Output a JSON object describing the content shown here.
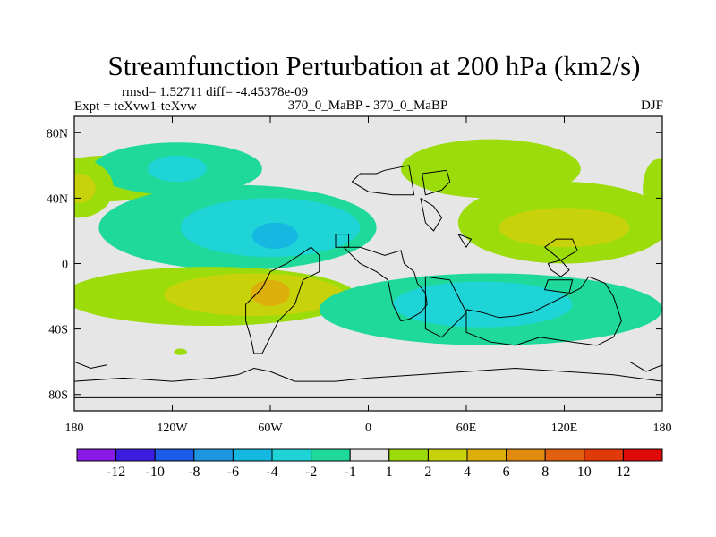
{
  "chart_data": {
    "type": "heatmap",
    "title": "Streamfunction Perturbation at 200 hPa (km2/s)",
    "stats": "rmsd= 1.52711 diff= -4.45378e-09",
    "left_label": "Expt = teXvw1-teXvw",
    "center_label": "370_0_MaBP - 370_0_MaBP",
    "right_label": "DJF",
    "x_ticks": [
      {
        "value": -180,
        "label": "180"
      },
      {
        "value": -120,
        "label": "120W"
      },
      {
        "value": -60,
        "label": "60W"
      },
      {
        "value": 0,
        "label": "0"
      },
      {
        "value": 60,
        "label": "60E"
      },
      {
        "value": 120,
        "label": "120E"
      },
      {
        "value": 180,
        "label": "180"
      }
    ],
    "y_ticks": [
      {
        "value": 80,
        "label": "80N"
      },
      {
        "value": 40,
        "label": "40N"
      },
      {
        "value": 0,
        "label": "0"
      },
      {
        "value": -40,
        "label": "40S"
      },
      {
        "value": -80,
        "label": "80S"
      }
    ],
    "xlim": [
      -180,
      180
    ],
    "ylim": [
      -90,
      90
    ],
    "colorbar": {
      "levels": [
        -12,
        -10,
        -8,
        -6,
        -4,
        -2,
        -1,
        1,
        2,
        4,
        6,
        8,
        10,
        12
      ],
      "colors": [
        "#8A1AE8",
        "#3B1EE0",
        "#1B5CE6",
        "#1E95E0",
        "#15B8E0",
        "#1ED4D6",
        "#1ED99A",
        "#E6E6E6",
        "#9BDC0A",
        "#C8D20A",
        "#DCAF0A",
        "#E08A10",
        "#E06010",
        "#E03A0A",
        "#E00A0A"
      ]
    },
    "anomaly_blobs": [
      {
        "lon": -160,
        "lat": 52,
        "rx": 40,
        "ry": 14,
        "value": 1.5
      },
      {
        "lon": -117,
        "lat": 58,
        "rx": 52,
        "ry": 16,
        "value": -1.5
      },
      {
        "lon": -117,
        "lat": 58,
        "rx": 18,
        "ry": 8,
        "value": -2.5
      },
      {
        "lon": -80,
        "lat": 22,
        "rx": 85,
        "ry": 26,
        "value": -1.5
      },
      {
        "lon": -60,
        "lat": 22,
        "rx": 55,
        "ry": 18,
        "value": -2.5
      },
      {
        "lon": -57,
        "lat": 17,
        "rx": 14,
        "ry": 8,
        "value": -4.5
      },
      {
        "lon": -97,
        "lat": -20,
        "rx": 90,
        "ry": 18,
        "value": 1.5
      },
      {
        "lon": -70,
        "lat": -19,
        "rx": 55,
        "ry": 13,
        "value": 3
      },
      {
        "lon": -60,
        "lat": -18,
        "rx": 12,
        "ry": 8,
        "value": 5
      },
      {
        "lon": -115,
        "lat": -54,
        "rx": 4,
        "ry": 2,
        "value": 1.5
      },
      {
        "lon": -178,
        "lat": 46,
        "rx": 22,
        "ry": 18,
        "value": 1.5
      },
      {
        "lon": -177,
        "lat": 46,
        "rx": 10,
        "ry": 9,
        "value": 3
      },
      {
        "lon": 178,
        "lat": 46,
        "rx": 10,
        "ry": 18,
        "value": 1.5
      },
      {
        "lon": 75,
        "lat": 58,
        "rx": 55,
        "ry": 18,
        "value": 1.5
      },
      {
        "lon": 120,
        "lat": 25,
        "rx": 65,
        "ry": 25,
        "value": 1.5
      },
      {
        "lon": 120,
        "lat": 22,
        "rx": 40,
        "ry": 12,
        "value": 3
      },
      {
        "lon": 75,
        "lat": -28,
        "rx": 105,
        "ry": 22,
        "value": -1.5
      },
      {
        "lon": 70,
        "lat": -25,
        "rx": 55,
        "ry": 14,
        "value": -2.5
      },
      {
        "lon": 43,
        "lat": -43,
        "rx": 3,
        "ry": 2,
        "value": -1.5
      }
    ],
    "coastlines": [
      [
        [
          -10,
          50
        ],
        [
          -5,
          55
        ],
        [
          5,
          55
        ],
        [
          10,
          57
        ],
        [
          25,
          60
        ],
        [
          27,
          48
        ],
        [
          28,
          42
        ],
        [
          15,
          42
        ],
        [
          0,
          44
        ],
        [
          -10,
          50
        ]
      ],
      [
        [
          -15,
          10
        ],
        [
          -5,
          10
        ],
        [
          10,
          5
        ],
        [
          20,
          8
        ],
        [
          22,
          0
        ],
        [
          28,
          -5
        ],
        [
          30,
          -12
        ],
        [
          35,
          -18
        ],
        [
          36,
          -25
        ],
        [
          32,
          -30
        ],
        [
          25,
          -34
        ],
        [
          20,
          -35
        ],
        [
          15,
          -25
        ],
        [
          12,
          -10
        ],
        [
          5,
          -5
        ],
        [
          -5,
          0
        ],
        [
          -15,
          10
        ]
      ],
      [
        [
          -20,
          18
        ],
        [
          -12,
          18
        ],
        [
          -12,
          10
        ],
        [
          -20,
          10
        ],
        [
          -20,
          18
        ]
      ],
      [
        [
          -35,
          10
        ],
        [
          -30,
          5
        ],
        [
          -30,
          -5
        ],
        [
          -40,
          -10
        ],
        [
          -45,
          -25
        ],
        [
          -50,
          -30
        ],
        [
          -55,
          -35
        ],
        [
          -60,
          -45
        ],
        [
          -65,
          -55
        ],
        [
          -70,
          -55
        ],
        [
          -72,
          -45
        ],
        [
          -75,
          -35
        ],
        [
          -75,
          -25
        ],
        [
          -70,
          -20
        ],
        [
          -65,
          -15
        ],
        [
          -60,
          -5
        ],
        [
          -50,
          0
        ],
        [
          -35,
          10
        ]
      ],
      [
        [
          35,
          -8
        ],
        [
          50,
          -10
        ],
        [
          60,
          -30
        ],
        [
          50,
          -40
        ],
        [
          45,
          -45
        ],
        [
          35,
          -40
        ],
        [
          35,
          -8
        ]
      ],
      [
        [
          60,
          -28
        ],
        [
          70,
          -30
        ],
        [
          80,
          -33
        ],
        [
          90,
          -32
        ],
        [
          100,
          -30
        ],
        [
          110,
          -25
        ],
        [
          120,
          -20
        ],
        [
          130,
          -15
        ],
        [
          135,
          -8
        ],
        [
          145,
          -12
        ],
        [
          150,
          -20
        ],
        [
          155,
          -35
        ],
        [
          150,
          -45
        ],
        [
          140,
          -50
        ],
        [
          125,
          -48
        ],
        [
          105,
          -45
        ],
        [
          90,
          -50
        ],
        [
          75,
          -48
        ],
        [
          60,
          -42
        ],
        [
          60,
          -28
        ]
      ],
      [
        [
          110,
          0
        ],
        [
          118,
          2
        ],
        [
          123,
          -4
        ],
        [
          118,
          -8
        ],
        [
          112,
          -4
        ],
        [
          110,
          0
        ]
      ],
      [
        [
          110,
          -10
        ],
        [
          125,
          -10
        ],
        [
          123,
          -18
        ],
        [
          108,
          -16
        ],
        [
          110,
          -10
        ]
      ],
      [
        [
          33,
          55
        ],
        [
          48,
          57
        ],
        [
          50,
          50
        ],
        [
          45,
          45
        ],
        [
          35,
          42
        ],
        [
          33,
          55
        ]
      ],
      [
        [
          32,
          40
        ],
        [
          40,
          35
        ],
        [
          45,
          28
        ],
        [
          40,
          20
        ],
        [
          35,
          25
        ],
        [
          32,
          40
        ]
      ],
      [
        [
          108,
          10
        ],
        [
          115,
          15
        ],
        [
          125,
          15
        ],
        [
          128,
          8
        ],
        [
          118,
          2
        ],
        [
          108,
          10
        ]
      ],
      [
        [
          55,
          18
        ],
        [
          63,
          15
        ],
        [
          60,
          10
        ],
        [
          55,
          18
        ]
      ],
      [
        [
          -180,
          -72
        ],
        [
          -150,
          -70
        ],
        [
          -120,
          -72
        ],
        [
          -95,
          -70
        ],
        [
          -80,
          -68
        ],
        [
          -70,
          -64
        ],
        [
          -60,
          -66
        ],
        [
          -45,
          -72
        ],
        [
          -20,
          -72
        ],
        [
          0,
          -70
        ],
        [
          30,
          -68
        ],
        [
          60,
          -66
        ],
        [
          90,
          -64
        ],
        [
          120,
          -66
        ],
        [
          150,
          -68
        ],
        [
          180,
          -72
        ]
      ],
      [
        [
          -180,
          -82
        ],
        [
          180,
          -82
        ]
      ],
      [
        [
          160,
          -60
        ],
        [
          170,
          -66
        ],
        [
          180,
          -62
        ]
      ],
      [
        [
          -180,
          -60
        ],
        [
          -170,
          -64
        ],
        [
          -160,
          -62
        ]
      ]
    ]
  }
}
